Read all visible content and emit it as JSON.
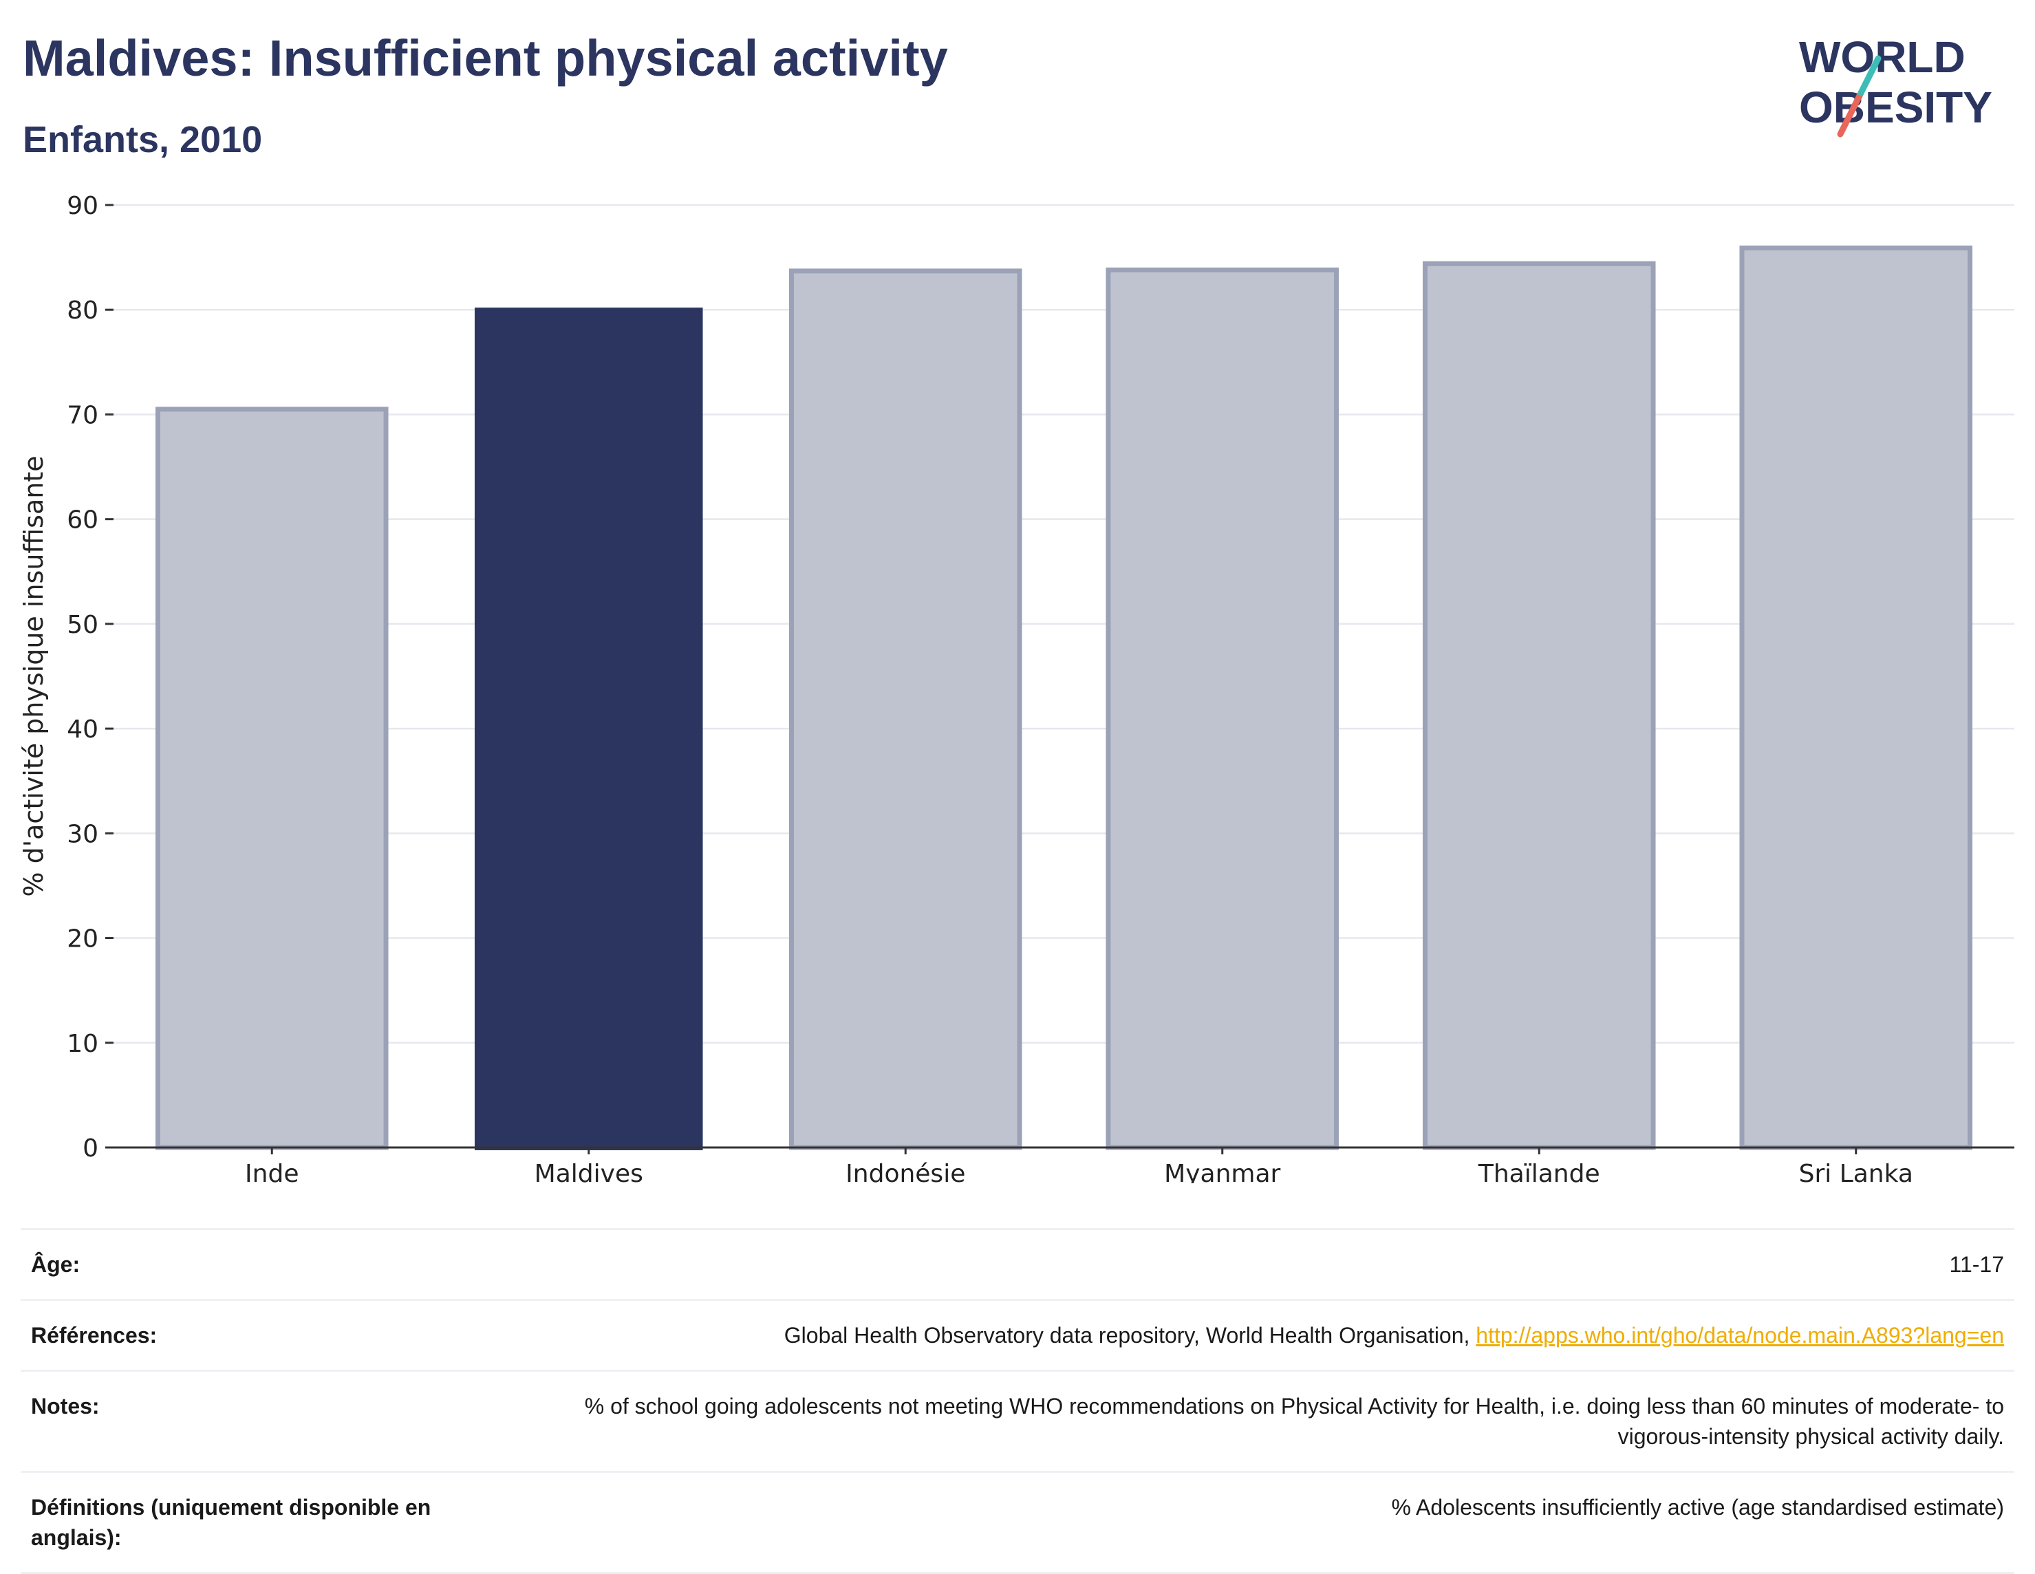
{
  "header": {
    "title": "Maldives: Insufficient physical activity",
    "subtitle": "Enfants, 2010"
  },
  "logo": {
    "line1": "WORLD",
    "line2": "OBESITY",
    "colors": {
      "text": "#2b3560",
      "slash_top": "#3dbdb6",
      "slash_bottom": "#e8665a"
    }
  },
  "chart_data": {
    "type": "bar",
    "categories": [
      "Inde",
      "Maldives",
      "Indonésie",
      "Myanmar",
      "Thaïlande",
      "Sri Lanka"
    ],
    "values": [
      70.5,
      80.2,
      83.7,
      83.8,
      84.4,
      85.9
    ],
    "highlight": "Maldives",
    "ylabel": "% d'activité physique insuffisante",
    "xlabel": "",
    "ylim": [
      0,
      90
    ],
    "yticks": [
      0,
      10,
      20,
      30,
      40,
      50,
      60,
      70,
      80,
      90
    ],
    "grid": true,
    "colors": {
      "highlight": "#2b3560",
      "other_fill": "#bfc3cf",
      "other_stroke": "#9ba2b8"
    }
  },
  "info": {
    "rows": [
      {
        "label": "Âge:",
        "value": "11-17"
      },
      {
        "label": "Références:",
        "value": "Global Health Observatory data repository, World Health Organisation, ",
        "link": "http://apps.who.int/gho/data/node.main.A893?lang=en"
      },
      {
        "label": "Notes:",
        "value": "% of school going adolescents not meeting WHO recommendations on Physical Activity for Health, i.e. doing less than 60 minutes of moderate- to vigorous-intensity physical activity daily."
      },
      {
        "label": "Définitions (uniquement disponible en anglais):",
        "value": "% Adolescents insufficiently active (age standardised estimate)"
      }
    ]
  }
}
